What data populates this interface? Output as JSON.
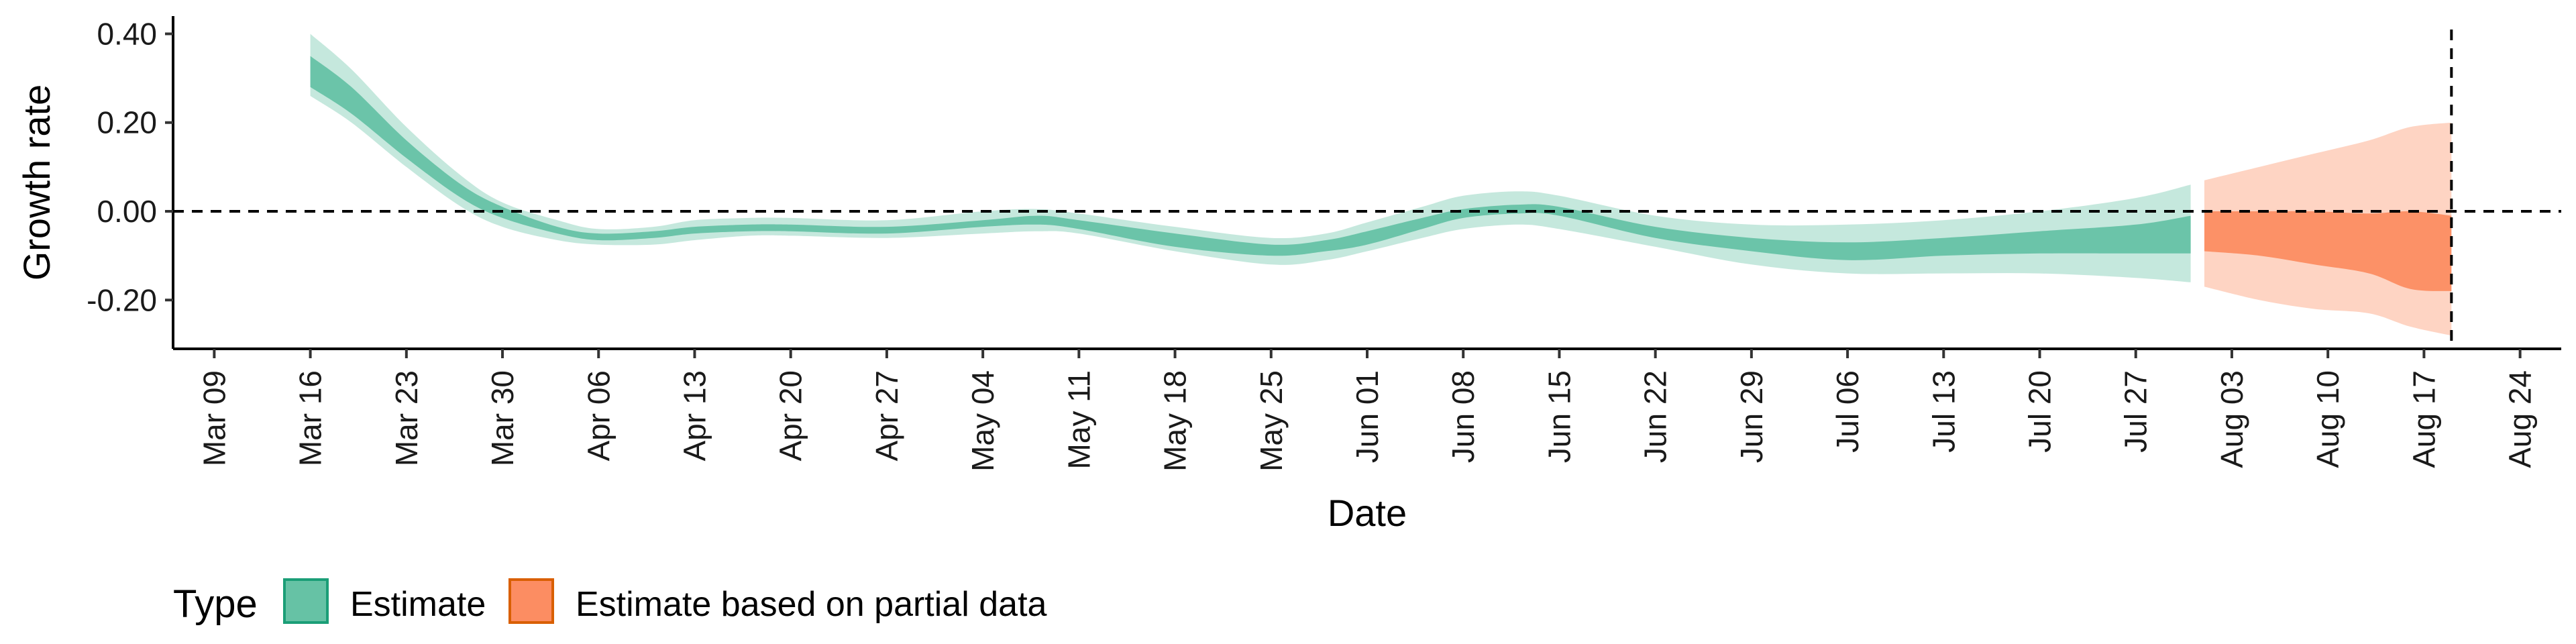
{
  "chart_data": {
    "type": "area",
    "xlabel": "Date",
    "ylabel": "Growth rate",
    "ylim": [
      -0.31,
      0.44
    ],
    "xlim": [
      "2020-03-06",
      "2020-08-27"
    ],
    "y_ticks": [
      -0.2,
      0,
      0.2,
      0.4
    ],
    "y_tick_labels": [
      "-0.20",
      "0.00",
      "0.20",
      "0.40"
    ],
    "x_ticks": [
      "2020-03-09",
      "2020-03-16",
      "2020-03-23",
      "2020-03-30",
      "2020-04-06",
      "2020-04-13",
      "2020-04-20",
      "2020-04-27",
      "2020-05-04",
      "2020-05-11",
      "2020-05-18",
      "2020-05-25",
      "2020-06-01",
      "2020-06-08",
      "2020-06-15",
      "2020-06-22",
      "2020-06-29",
      "2020-07-06",
      "2020-07-13",
      "2020-07-20",
      "2020-07-27",
      "2020-08-03",
      "2020-08-10",
      "2020-08-17",
      "2020-08-24"
    ],
    "x_tick_labels": [
      "Mar 09",
      "Mar 16",
      "Mar 23",
      "Mar 30",
      "Apr 06",
      "Apr 13",
      "Apr 20",
      "Apr 27",
      "May 04",
      "May 11",
      "May 18",
      "May 25",
      "Jun 01",
      "Jun 08",
      "Jun 15",
      "Jun 22",
      "Jun 29",
      "Jul 06",
      "Jul 13",
      "Jul 20",
      "Jul 27",
      "Aug 03",
      "Aug 10",
      "Aug 17",
      "Aug 24"
    ],
    "hline_y": 0,
    "vline_x": "2020-08-19",
    "grid": false,
    "legend": {
      "title": "Type",
      "position": "bottom-left",
      "entries": [
        "Estimate",
        "Estimate based on partial data"
      ]
    },
    "series": [
      {
        "name": "Estimate",
        "color": "#66c2a5",
        "points": [
          {
            "x": "2020-03-16",
            "inner": [
              0.28,
              0.35
            ],
            "outer": [
              0.26,
              0.4
            ]
          },
          {
            "x": "2020-03-19",
            "inner": [
              0.22,
              0.28
            ],
            "outer": [
              0.2,
              0.32
            ]
          },
          {
            "x": "2020-03-23",
            "inner": [
              0.12,
              0.16
            ],
            "outer": [
              0.1,
              0.19
            ]
          },
          {
            "x": "2020-03-27",
            "inner": [
              0.03,
              0.06
            ],
            "outer": [
              0.01,
              0.08
            ]
          },
          {
            "x": "2020-03-30",
            "inner": [
              -0.015,
              0.01
            ],
            "outer": [
              -0.035,
              0.02
            ]
          },
          {
            "x": "2020-04-03",
            "inner": [
              -0.05,
              -0.035
            ],
            "outer": [
              -0.065,
              -0.02
            ]
          },
          {
            "x": "2020-04-06",
            "inner": [
              -0.065,
              -0.05
            ],
            "outer": [
              -0.075,
              -0.04
            ]
          },
          {
            "x": "2020-04-10",
            "inner": [
              -0.06,
              -0.045
            ],
            "outer": [
              -0.075,
              -0.035
            ]
          },
          {
            "x": "2020-04-13",
            "inner": [
              -0.05,
              -0.035
            ],
            "outer": [
              -0.065,
              -0.02
            ]
          },
          {
            "x": "2020-04-17",
            "inner": [
              -0.045,
              -0.03
            ],
            "outer": [
              -0.055,
              -0.015
            ]
          },
          {
            "x": "2020-04-20",
            "inner": [
              -0.045,
              -0.03
            ],
            "outer": [
              -0.055,
              -0.015
            ]
          },
          {
            "x": "2020-04-27",
            "inner": [
              -0.05,
              -0.035
            ],
            "outer": [
              -0.06,
              -0.02
            ]
          },
          {
            "x": "2020-05-04",
            "inner": [
              -0.035,
              -0.02
            ],
            "outer": [
              -0.05,
              0.0
            ]
          },
          {
            "x": "2020-05-08",
            "inner": [
              -0.03,
              -0.01
            ],
            "outer": [
              -0.045,
              0.005
            ]
          },
          {
            "x": "2020-05-11",
            "inner": [
              -0.04,
              -0.02
            ],
            "outer": [
              -0.05,
              -0.005
            ]
          },
          {
            "x": "2020-05-18",
            "inner": [
              -0.08,
              -0.05
            ],
            "outer": [
              -0.09,
              -0.035
            ]
          },
          {
            "x": "2020-05-25",
            "inner": [
              -0.1,
              -0.075
            ],
            "outer": [
              -0.12,
              -0.06
            ]
          },
          {
            "x": "2020-05-29",
            "inner": [
              -0.09,
              -0.065
            ],
            "outer": [
              -0.11,
              -0.05
            ]
          },
          {
            "x": "2020-06-01",
            "inner": [
              -0.075,
              -0.045
            ],
            "outer": [
              -0.09,
              -0.025
            ]
          },
          {
            "x": "2020-06-05",
            "inner": [
              -0.04,
              -0.015
            ],
            "outer": [
              -0.06,
              0.01
            ]
          },
          {
            "x": "2020-06-08",
            "inner": [
              -0.015,
              0.005
            ],
            "outer": [
              -0.04,
              0.035
            ]
          },
          {
            "x": "2020-06-12",
            "inner": [
              -0.005,
              0.015
            ],
            "outer": [
              -0.03,
              0.045
            ]
          },
          {
            "x": "2020-06-15",
            "inner": [
              -0.01,
              0.01
            ],
            "outer": [
              -0.04,
              0.035
            ]
          },
          {
            "x": "2020-06-22",
            "inner": [
              -0.06,
              -0.035
            ],
            "outer": [
              -0.08,
              -0.01
            ]
          },
          {
            "x": "2020-06-29",
            "inner": [
              -0.09,
              -0.06
            ],
            "outer": [
              -0.12,
              -0.03
            ]
          },
          {
            "x": "2020-07-06",
            "inner": [
              -0.11,
              -0.07
            ],
            "outer": [
              -0.14,
              -0.03
            ]
          },
          {
            "x": "2020-07-13",
            "inner": [
              -0.1,
              -0.06
            ],
            "outer": [
              -0.14,
              -0.02
            ]
          },
          {
            "x": "2020-07-20",
            "inner": [
              -0.095,
              -0.045
            ],
            "outer": [
              -0.14,
              0.0
            ]
          },
          {
            "x": "2020-07-27",
            "inner": [
              -0.095,
              -0.03
            ],
            "outer": [
              -0.15,
              0.03
            ]
          },
          {
            "x": "2020-07-31",
            "inner": [
              -0.095,
              -0.01
            ],
            "outer": [
              -0.16,
              0.06
            ]
          }
        ]
      },
      {
        "name": "Estimate based on partial data",
        "color": "#fc8d62",
        "points": [
          {
            "x": "2020-08-01",
            "inner": [
              -0.09,
              0.0
            ],
            "outer": [
              -0.17,
              0.07
            ]
          },
          {
            "x": "2020-08-05",
            "inner": [
              -0.1,
              0.0
            ],
            "outer": [
              -0.2,
              0.1
            ]
          },
          {
            "x": "2020-08-09",
            "inner": [
              -0.12,
              0.0
            ],
            "outer": [
              -0.22,
              0.13
            ]
          },
          {
            "x": "2020-08-13",
            "inner": [
              -0.14,
              -0.005
            ],
            "outer": [
              -0.23,
              0.16
            ]
          },
          {
            "x": "2020-08-16",
            "inner": [
              -0.175,
              0.0
            ],
            "outer": [
              -0.26,
              0.19
            ]
          },
          {
            "x": "2020-08-19",
            "inner": [
              -0.18,
              -0.01
            ],
            "outer": [
              -0.28,
              0.2
            ]
          }
        ]
      }
    ]
  }
}
